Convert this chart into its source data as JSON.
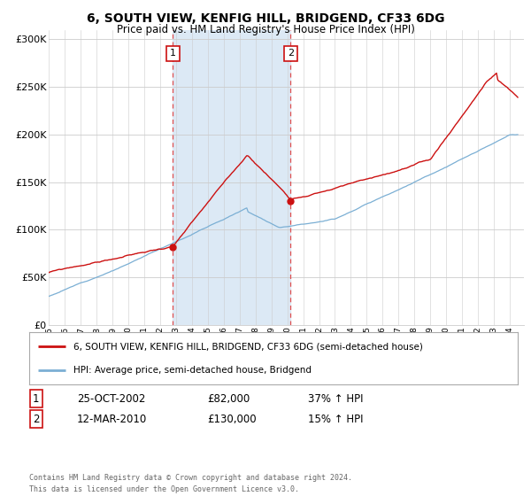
{
  "title": "6, SOUTH VIEW, KENFIG HILL, BRIDGEND, CF33 6DG",
  "subtitle": "Price paid vs. HM Land Registry's House Price Index (HPI)",
  "ylim": [
    0,
    310000
  ],
  "yticks": [
    0,
    50000,
    100000,
    150000,
    200000,
    250000,
    300000
  ],
  "ytick_labels": [
    "£0",
    "£50K",
    "£100K",
    "£150K",
    "£200K",
    "£250K",
    "£300K"
  ],
  "purchase1_date": 2002.81,
  "purchase1_price": 82000,
  "purchase1_label": "1",
  "purchase2_date": 2010.21,
  "purchase2_price": 130000,
  "purchase2_label": "2",
  "shaded_region_color": "#dce9f5",
  "vline_color": "#e05050",
  "hpi_color": "#7bafd4",
  "price_color": "#cc1111",
  "legend_label_price": "6, SOUTH VIEW, KENFIG HILL, BRIDGEND, CF33 6DG (semi-detached house)",
  "legend_label_hpi": "HPI: Average price, semi-detached house, Bridgend",
  "table_row1": [
    "1",
    "25-OCT-2002",
    "£82,000",
    "37% ↑ HPI"
  ],
  "table_row2": [
    "2",
    "12-MAR-2010",
    "£130,000",
    "15% ↑ HPI"
  ],
  "footer": "Contains HM Land Registry data © Crown copyright and database right 2024.\nThis data is licensed under the Open Government Licence v3.0.",
  "background_color": "#ffffff"
}
